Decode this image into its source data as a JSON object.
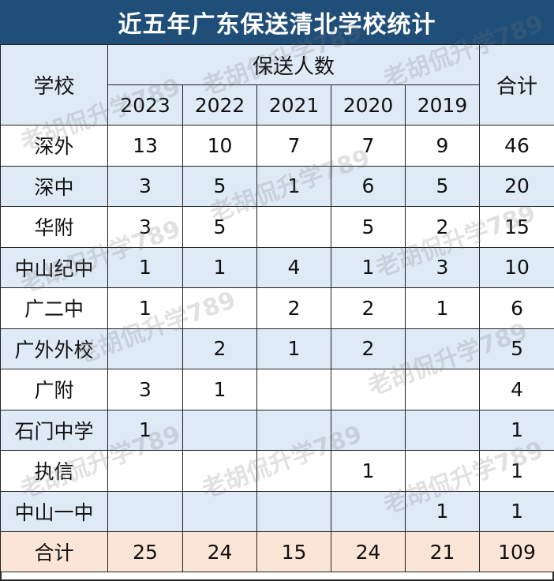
{
  "title": "近五年广东保送清北学校统计",
  "header": {
    "school_label": "学校",
    "group_label": "保送人数",
    "total_label": "合计",
    "years": [
      "2023",
      "2022",
      "2021",
      "2020",
      "2019"
    ]
  },
  "rows": [
    {
      "school": "深外",
      "values": [
        "13",
        "10",
        "7",
        "7",
        "9"
      ],
      "total": "46"
    },
    {
      "school": "深中",
      "values": [
        "3",
        "5",
        "1",
        "6",
        "5"
      ],
      "total": "20"
    },
    {
      "school": "华附",
      "values": [
        "3",
        "5",
        "",
        "5",
        "2"
      ],
      "total": "15"
    },
    {
      "school": "中山纪中",
      "values": [
        "1",
        "1",
        "4",
        "1",
        "3"
      ],
      "total": "10"
    },
    {
      "school": "广二中",
      "values": [
        "1",
        "",
        "2",
        "2",
        "1"
      ],
      "total": "6"
    },
    {
      "school": "广外外校",
      "values": [
        "",
        "2",
        "1",
        "2",
        ""
      ],
      "total": "5"
    },
    {
      "school": "广附",
      "values": [
        "3",
        "1",
        "",
        "",
        ""
      ],
      "total": "4"
    },
    {
      "school": "石门中学",
      "values": [
        "1",
        "",
        "",
        "",
        ""
      ],
      "total": "1"
    },
    {
      "school": "执信",
      "values": [
        "",
        "",
        "",
        "1",
        ""
      ],
      "total": "1"
    },
    {
      "school": "中山一中",
      "values": [
        "",
        "",
        "",
        "",
        "1"
      ],
      "total": "1"
    }
  ],
  "totals": {
    "label": "合计",
    "values": [
      "25",
      "24",
      "15",
      "24",
      "21"
    ],
    "total": "109"
  },
  "watermark": "老胡侃升学789"
}
